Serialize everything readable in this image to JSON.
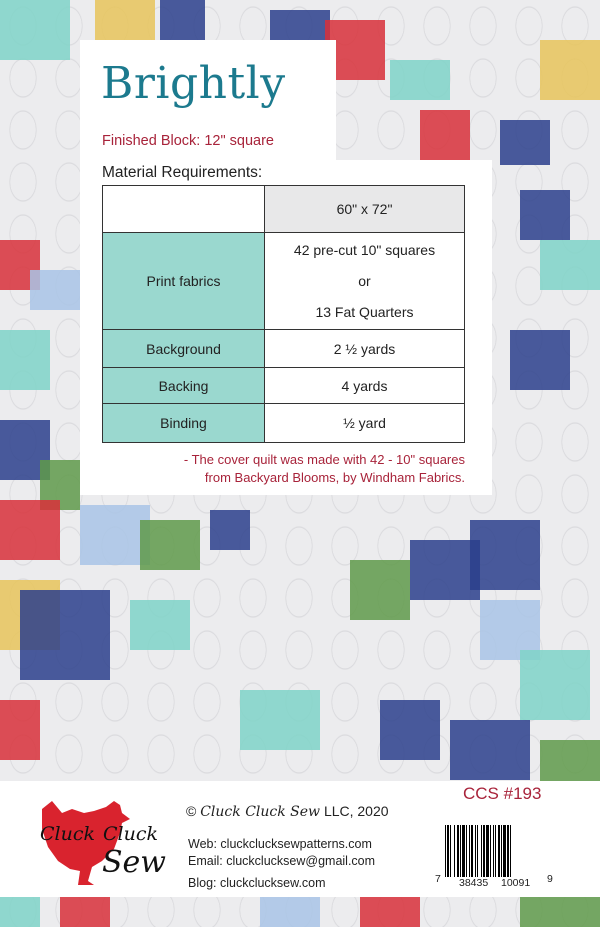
{
  "pattern": {
    "title": "Brightly",
    "finished_block": "Finished Block:  12\" square",
    "material_heading": "Material Requirements:"
  },
  "table": {
    "header": [
      "",
      "60\" x 72\""
    ],
    "rows": [
      {
        "label": "Print fabrics",
        "values": [
          "42 pre-cut 10\" squares",
          "or",
          "13 Fat Quarters"
        ]
      },
      {
        "label": "Background",
        "values": [
          "2 ½ yards"
        ]
      },
      {
        "label": "Backing",
        "values": [
          "4 yards"
        ]
      },
      {
        "label": "Binding",
        "values": [
          "½ yard"
        ]
      }
    ]
  },
  "note": {
    "line1": "- The cover quilt was made with 42 - 10\" squares",
    "line2": "from Backyard Blooms, by Windham Fabrics."
  },
  "footer": {
    "logo_text": [
      "Cluck",
      "Cluck",
      "Sew"
    ],
    "copyright_symbol": "©",
    "copyright_brand": "Cluck Cluck Sew",
    "copyright_rest": "LLC, 2020",
    "web": "Web: cluckclucksewpatterns.com",
    "email": "Email: cluckclucksew@gmail.com",
    "blog": "Blog:  cluckclucksew.com",
    "product_code": "CCS #193",
    "barcode_digits": [
      "7",
      "38435",
      "10091",
      "9"
    ]
  },
  "colors": {
    "title": "#1c7a8e",
    "accent_red": "#a8233a",
    "table_label_bg": "#9ad8cf",
    "table_header_bg": "#e8e8e9",
    "hen_red": "#d9232e"
  }
}
